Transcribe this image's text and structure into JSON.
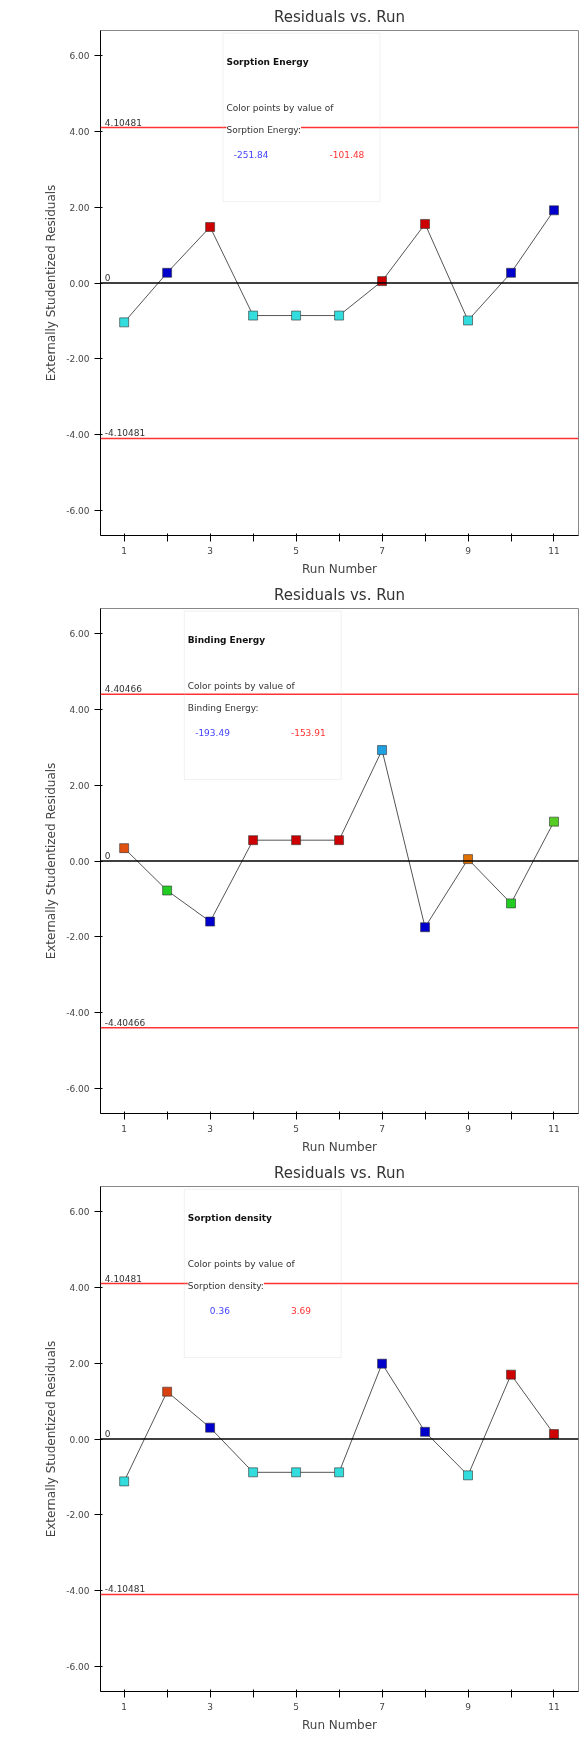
{
  "chart_data": [
    {
      "type": "line",
      "title": "Residuals vs. Run",
      "xlabel": "Run Number",
      "ylabel": "Externally Studentized Residuals",
      "legend_title": "Sorption Energy",
      "clabel": "Color points by value of Sorption Energy:",
      "annotations": [
        "-251.84",
        "-101.48"
      ],
      "marker": "square",
      "line_style": "solid",
      "grid": false,
      "x": [
        1,
        2,
        3,
        4,
        5,
        6,
        7,
        8,
        9,
        10,
        11
      ],
      "series": [
        {
          "color": "#555555",
          "colors": [
            "#33dddd",
            "#0000cc",
            "#cc0000",
            "#33dddd",
            "#33dddd",
            "#33dddd",
            "#cc0000",
            "#cc0000",
            "#33dddd",
            "#0000cc",
            "#0000cc"
          ],
          "values": [
            -1.04,
            0.27,
            1.48,
            -0.86,
            -0.86,
            -0.86,
            0.05,
            1.56,
            -0.99,
            0.27,
            1.92
          ]
        }
      ],
      "xlim": [
        0.45,
        11.57
      ],
      "ylim": [
        -6.67,
        6.67
      ],
      "xticks": [
        1,
        {
          "value": 2,
          "label": null
        },
        3,
        {
          "value": 4,
          "label": null
        },
        5,
        {
          "value": 6,
          "label": null
        },
        7,
        {
          "value": 8,
          "label": null
        },
        9,
        {
          "value": 10,
          "label": null
        },
        11
      ],
      "yticks": [
        {
          "value": -6,
          "label": "-6.00"
        },
        {
          "value": -4,
          "label": "-4.00"
        },
        {
          "value": -2,
          "label": "-2.00"
        },
        {
          "value": 0,
          "label": "0.00"
        },
        {
          "value": 2,
          "label": "2.00"
        },
        {
          "value": 4,
          "label": "4.00"
        },
        {
          "value": 6,
          "label": "6.00"
        }
      ],
      "ref_lines": [
        {
          "axis": "y",
          "value": 4.10481,
          "label": "4.10481",
          "color": "#ff3333"
        },
        {
          "axis": "y",
          "value": 0,
          "label": "0",
          "color": "#000000"
        },
        {
          "axis": "y",
          "value": -4.10481,
          "label": "-4.10481",
          "color": "#ff3333"
        }
      ]
    },
    {
      "type": "line",
      "title": "Residuals vs. Run",
      "xlabel": "Run Number",
      "ylabel": "Externally Studentized Residuals",
      "legend_title": "Binding Energy",
      "clabel": "Color points by value of Binding Energy:",
      "annotations": [
        "-193.49",
        "-153.91"
      ],
      "marker": "square",
      "line_style": "solid",
      "grid": false,
      "x": [
        1,
        2,
        3,
        4,
        5,
        6,
        7,
        8,
        9,
        10,
        11
      ],
      "series": [
        {
          "color": "#555555",
          "colors": [
            "#e05010",
            "#22cc22",
            "#0000cc",
            "#cc0000",
            "#cc0000",
            "#cc0000",
            "#1fa0e0",
            "#0000cc",
            "#e07000",
            "#22cc22",
            "#55cc22"
          ],
          "values": [
            0.34,
            -0.78,
            -1.6,
            0.55,
            0.55,
            0.55,
            2.93,
            -1.75,
            0.05,
            -1.12,
            1.04
          ]
        }
      ],
      "xlim": [
        0.45,
        11.57
      ],
      "ylim": [
        -6.67,
        6.67
      ],
      "xticks": [
        1,
        {
          "value": 2,
          "label": null
        },
        3,
        {
          "value": 4,
          "label": null
        },
        5,
        {
          "value": 6,
          "label": null
        },
        7,
        {
          "value": 8,
          "label": null
        },
        9,
        {
          "value": 10,
          "label": null
        },
        11
      ],
      "yticks": [
        {
          "value": -6,
          "label": "-6.00"
        },
        {
          "value": -4,
          "label": "-4.00"
        },
        {
          "value": -2,
          "label": "-2.00"
        },
        {
          "value": 0,
          "label": "0.00"
        },
        {
          "value": 2,
          "label": "2.00"
        },
        {
          "value": 4,
          "label": "4.00"
        },
        {
          "value": 6,
          "label": "6.00"
        }
      ],
      "ref_lines": [
        {
          "axis": "y",
          "value": 4.40466,
          "label": "4.40466",
          "color": "#ff3333"
        },
        {
          "axis": "y",
          "value": 0,
          "label": "0",
          "color": "#000000"
        },
        {
          "axis": "y",
          "value": -4.40466,
          "label": "-4.40466",
          "color": "#ff3333"
        }
      ]
    },
    {
      "type": "line",
      "title": "Residuals vs. Run",
      "xlabel": "Run Number",
      "ylabel": "Externally Studentized Residuals",
      "legend_title": "Sorption density",
      "clabel": "Color points by value of Sorption density:",
      "annotations": [
        "0.36",
        "3.69"
      ],
      "marker": "square",
      "line_style": "solid",
      "grid": false,
      "x": [
        1,
        2,
        3,
        4,
        5,
        6,
        7,
        8,
        9,
        10,
        11
      ],
      "series": [
        {
          "color": "#555555",
          "colors": [
            "#33dddd",
            "#d84010",
            "#0000cc",
            "#33dddd",
            "#33dddd",
            "#33dddd",
            "#0000cc",
            "#0000cc",
            "#33dddd",
            "#cc0000",
            "#cc0000"
          ],
          "values": [
            -1.12,
            1.25,
            0.3,
            -0.88,
            -0.88,
            -0.88,
            1.99,
            0.19,
            -0.96,
            1.7,
            0.13
          ]
        }
      ],
      "xlim": [
        0.45,
        11.57
      ],
      "ylim": [
        -6.67,
        6.67
      ],
      "xticks": [
        1,
        {
          "value": 2,
          "label": null
        },
        3,
        {
          "value": 4,
          "label": null
        },
        5,
        {
          "value": 6,
          "label": null
        },
        7,
        {
          "value": 8,
          "label": null
        },
        9,
        {
          "value": 10,
          "label": null
        },
        11
      ],
      "yticks": [
        {
          "value": -6,
          "label": "-6.00"
        },
        {
          "value": -4,
          "label": "-4.00"
        },
        {
          "value": -2,
          "label": "-2.00"
        },
        {
          "value": 0,
          "label": "0.00"
        },
        {
          "value": 2,
          "label": "2.00"
        },
        {
          "value": 4,
          "label": "4.00"
        },
        {
          "value": 6,
          "label": "6.00"
        }
      ],
      "ref_lines": [
        {
          "axis": "y",
          "value": 4.10481,
          "label": "4.10481",
          "color": "#ff3333"
        },
        {
          "axis": "y",
          "value": 0,
          "label": "0",
          "color": "#000000"
        },
        {
          "axis": "y",
          "value": -4.10481,
          "label": "-4.10481",
          "color": "#ff3333"
        }
      ]
    }
  ]
}
